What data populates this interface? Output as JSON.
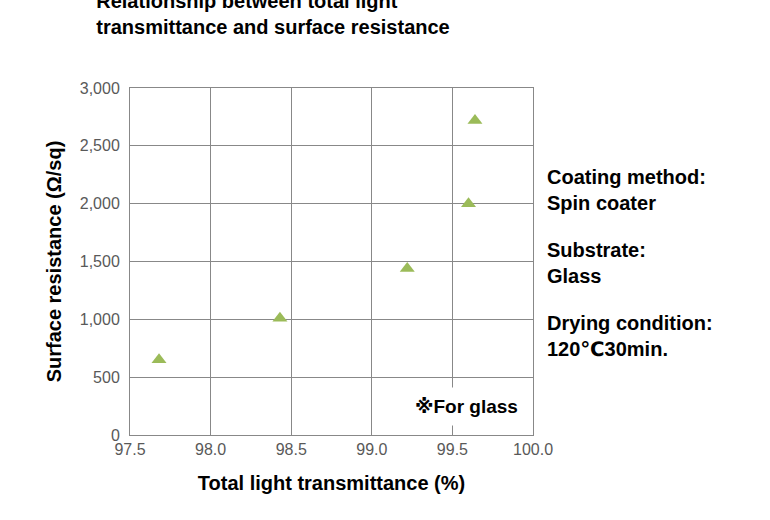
{
  "chart_data": {
    "type": "scatter",
    "title": [
      "Relationship between total light",
      "transmittance and surface resistance"
    ],
    "x_label": "Total light transmittance (%)",
    "y_label": "Surface resistance (Ω/sq)",
    "x": [
      97.68,
      98.43,
      99.22,
      99.6,
      99.64
    ],
    "values": [
      650,
      1010,
      1440,
      2000,
      2720
    ],
    "color": "#9bbb59",
    "marker": "triangle-up",
    "xlim": [
      97.5,
      100
    ],
    "xticks": [
      97.5,
      {
        "value": 98,
        "label": "98.0"
      },
      98.5,
      {
        "value": 99,
        "label": "99.0"
      },
      99.5,
      {
        "value": 100,
        "label": "100.0"
      }
    ],
    "ylim": [
      0,
      3000
    ],
    "yticks": [
      0,
      500,
      {
        "value": 1000,
        "label": "1,000"
      },
      {
        "value": 1500,
        "label": "1,500"
      },
      {
        "value": 2000,
        "label": "2,000"
      },
      {
        "value": 2500,
        "label": "2,500"
      },
      {
        "value": 3000,
        "label": "3,000"
      }
    ],
    "grid": true,
    "annotations": [
      [
        "Coating method:",
        "Spin coater"
      ],
      [
        "Substrate:",
        "Glass"
      ],
      [
        "Drying condition:",
        "120℃30min."
      ]
    ],
    "note": "※For glass"
  }
}
